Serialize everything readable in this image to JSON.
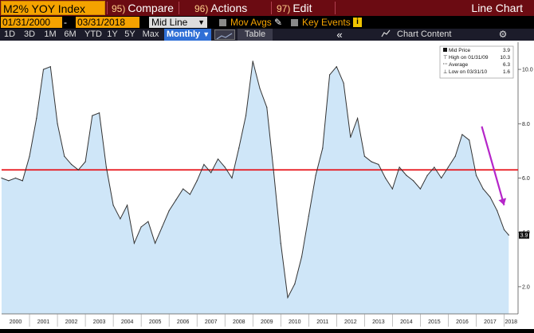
{
  "toolbar": {
    "ticker": "M2% YOY Index",
    "menu": [
      {
        "num": "95)",
        "label": "Compare"
      },
      {
        "num": "96)",
        "label": "Actions"
      },
      {
        "num": "97)",
        "label": "Edit"
      }
    ],
    "view_title": "Line Chart"
  },
  "controls": {
    "start_date": "01/31/2000",
    "separator": "-",
    "end_date": "03/31/2018",
    "price_type": "Mid Line",
    "mov_avgs": "Mov Avgs",
    "key_events": "Key Events",
    "info": "i"
  },
  "range_bar": {
    "ranges": [
      "1D",
      "3D",
      "1M",
      "6M",
      "YTD",
      "1Y",
      "5Y",
      "Max"
    ],
    "frequency": "Monthly",
    "table_label": "Table",
    "back_label": "«",
    "chart_content_label": "Chart Content",
    "gear_label": "⚙"
  },
  "legend": {
    "rows": [
      {
        "label": "Mid Price",
        "value": "3.9"
      },
      {
        "label": "High on 01/31/09",
        "value": "10.3"
      },
      {
        "label": "Average",
        "value": "6.3"
      },
      {
        "label": "Low on 03/31/10",
        "value": "1.6"
      }
    ]
  },
  "last_value_label": "3.9",
  "colors": {
    "line": "#333333",
    "area": "#cfe6f8",
    "average_line": "#e8141a",
    "trend_arrow": "#b526c9"
  },
  "chart_data": {
    "type": "area",
    "x": [
      "2000-01",
      "2000-04",
      "2000-07",
      "2000-10",
      "2001-01",
      "2001-04",
      "2001-07",
      "2001-10",
      "2002-01",
      "2002-04",
      "2002-07",
      "2002-10",
      "2003-01",
      "2003-04",
      "2003-07",
      "2003-10",
      "2004-01",
      "2004-04",
      "2004-07",
      "2004-10",
      "2005-01",
      "2005-04",
      "2005-07",
      "2005-10",
      "2006-01",
      "2006-04",
      "2006-07",
      "2006-10",
      "2007-01",
      "2007-04",
      "2007-07",
      "2007-10",
      "2008-01",
      "2008-04",
      "2008-07",
      "2008-10",
      "2009-01",
      "2009-04",
      "2009-07",
      "2009-10",
      "2010-01",
      "2010-04",
      "2010-07",
      "2010-10",
      "2011-01",
      "2011-04",
      "2011-07",
      "2011-10",
      "2012-01",
      "2012-04",
      "2012-07",
      "2012-10",
      "2013-01",
      "2013-04",
      "2013-07",
      "2013-10",
      "2014-01",
      "2014-04",
      "2014-07",
      "2014-10",
      "2015-01",
      "2015-04",
      "2015-07",
      "2015-10",
      "2016-01",
      "2016-04",
      "2016-07",
      "2016-10",
      "2017-01",
      "2017-04",
      "2017-07",
      "2017-10",
      "2018-01",
      "2018-03"
    ],
    "y": [
      6.0,
      5.9,
      6.0,
      5.9,
      6.8,
      8.2,
      10.0,
      10.1,
      8.0,
      6.8,
      6.5,
      6.3,
      6.6,
      8.3,
      8.4,
      6.4,
      5.0,
      4.5,
      5.0,
      3.6,
      4.2,
      4.4,
      3.6,
      4.2,
      4.8,
      5.2,
      5.6,
      5.4,
      5.9,
      6.5,
      6.2,
      6.7,
      6.4,
      6.0,
      7.1,
      8.3,
      10.3,
      9.3,
      8.6,
      6.2,
      3.6,
      1.6,
      2.1,
      3.1,
      4.6,
      6.1,
      7.1,
      9.8,
      10.1,
      9.5,
      7.5,
      8.2,
      6.8,
      6.6,
      6.5,
      6.0,
      5.6,
      6.4,
      6.1,
      5.9,
      5.6,
      6.1,
      6.4,
      6.0,
      6.4,
      6.8,
      7.6,
      7.4,
      6.1,
      5.6,
      5.3,
      4.8,
      4.1,
      3.9
    ],
    "average": 6.3,
    "high": {
      "x": "2009-01",
      "y": 10.3
    },
    "low": {
      "x": "2010-03",
      "y": 1.6
    },
    "y_ticks": [
      2.0,
      4.0,
      6.0,
      8.0,
      10.0
    ],
    "y_tick_labels": [
      "2.0",
      "4.0",
      "6.0",
      "8.0",
      "10.0"
    ],
    "x_tick_labels": [
      "2000",
      "2001",
      "2002",
      "2003",
      "2004",
      "2005",
      "2006",
      "2007",
      "2008",
      "2009",
      "2010",
      "2011",
      "2012",
      "2013",
      "2014",
      "2015",
      "2016",
      "2017",
      "2018"
    ],
    "ylim": [
      1.0,
      11.0
    ],
    "grid": false,
    "legend_position": "top-right"
  }
}
